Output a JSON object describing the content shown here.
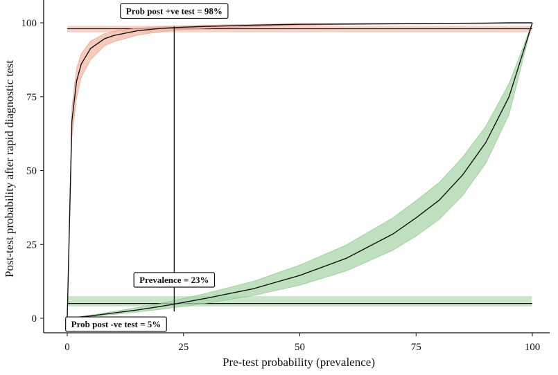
{
  "chart_data": {
    "type": "line",
    "title": "",
    "xlabel": "Pre-test probability (prevalence)",
    "ylabel": "Post-test probability after rapid diagnostic test",
    "xlim": [
      0,
      100
    ],
    "ylim": [
      0,
      100
    ],
    "xticks": [
      0,
      25,
      50,
      75,
      100
    ],
    "yticks": [
      0,
      25,
      50,
      75,
      100
    ],
    "grid": false,
    "legend": "none",
    "series": [
      {
        "x": [
          0,
          1,
          2,
          3,
          5,
          8,
          10,
          15,
          20,
          23,
          30,
          40,
          50,
          60,
          70,
          80,
          90,
          95,
          100
        ],
        "y": [
          0,
          66.7,
          80.2,
          86.0,
          91.3,
          94.6,
          95.7,
          97.3,
          98.1,
          98.4,
          98.8,
          99.2,
          99.5,
          99.6,
          99.7,
          99.8,
          99.9,
          100,
          100
        ],
        "y_lower": [
          0,
          61,
          74.5,
          81.5,
          87.5,
          92.2,
          93.6,
          95.8,
          97.0,
          97.5,
          98.1,
          98.7,
          99.1,
          99.4,
          99.5,
          99.7,
          99.8,
          99.9,
          100
        ],
        "y_upper": [
          0,
          71.5,
          84.5,
          89.5,
          93.8,
          96.3,
          97.1,
          98.2,
          98.7,
          98.9,
          99.2,
          99.5,
          99.7,
          99.8,
          99.85,
          99.9,
          99.95,
          100,
          100
        ],
        "color": "#e8836a",
        "band_color": "#f2b9a6"
      },
      {
        "x": [
          0,
          5,
          10,
          15,
          20,
          23,
          30,
          40,
          50,
          60,
          70,
          75,
          80,
          85,
          90,
          95,
          100
        ],
        "y": [
          0,
          0.8,
          1.8,
          2.8,
          4.0,
          4.8,
          6.8,
          10.0,
          14.5,
          20.3,
          28.5,
          34.0,
          40.0,
          48.5,
          59.5,
          75.0,
          100
        ],
        "y_lower": [
          0,
          0.6,
          1.3,
          2.1,
          3.0,
          3.6,
          5.1,
          7.7,
          11.2,
          16.0,
          23.0,
          27.8,
          33.5,
          41.5,
          52.5,
          69.0,
          100
        ],
        "y_upper": [
          0,
          1.0,
          2.3,
          3.6,
          5.0,
          6.0,
          8.5,
          12.5,
          18.0,
          24.8,
          34.0,
          39.8,
          46.0,
          54.5,
          65.0,
          79.5,
          100
        ],
        "color": "#6bb56b",
        "band_color": "#a9d6a9"
      }
    ],
    "reference_lines": [
      {
        "orientation": "horizontal",
        "y": 98,
        "color": "#e8836a",
        "band": [
          96.8,
          99.0
        ]
      },
      {
        "orientation": "horizontal",
        "y": 5,
        "color": "#6bb56b",
        "band": [
          4.0,
          7.5
        ]
      },
      {
        "orientation": "vertical",
        "x": 23
      }
    ],
    "annotations": [
      {
        "text": "Prob post +ve test = 98%",
        "x": 23,
        "y": 104
      },
      {
        "text": "Prevalence = 23%",
        "x": 23,
        "y": 13
      },
      {
        "text": "Prob post -ve test = 5%",
        "x": 10.5,
        "y": -2
      }
    ]
  }
}
